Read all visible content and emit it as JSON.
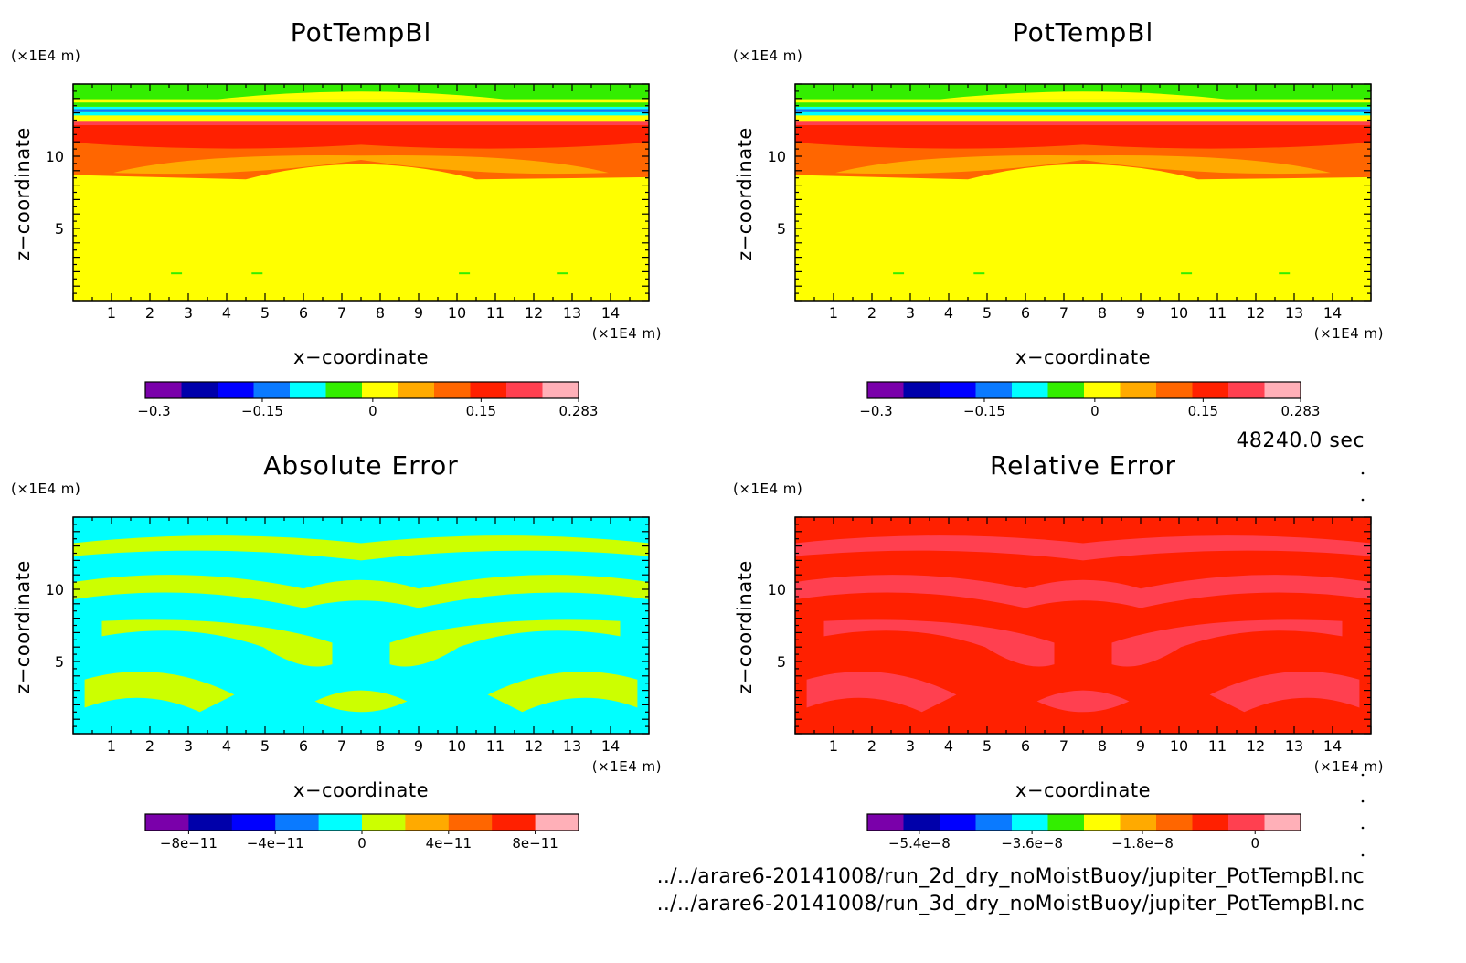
{
  "time_label": "48240.0 sec",
  "files": [
    "../../arare6-20141008/run_2d_dry_noMoistBuoy/jupiter_PotTempBl.nc",
    "../../arare6-20141008/run_3d_dry_noMoistBuoy/jupiter_PotTempBl.nc"
  ],
  "chart_data": [
    {
      "type": "heatmap",
      "title": "PotTempBl",
      "xlabel": "x−coordinate",
      "ylabel": "z−coordinate",
      "x_unit": "(×1E4 m)",
      "y_unit": "(×1E4 m)",
      "xlim": [
        0,
        15
      ],
      "ylim": [
        0,
        15
      ],
      "xticks": [
        1,
        2,
        3,
        4,
        5,
        6,
        7,
        8,
        9,
        10,
        11,
        12,
        13,
        14
      ],
      "yticks": [
        5,
        10
      ],
      "colorbar": {
        "colors": [
          "#7a00aa",
          "#0000aa",
          "#0000ff",
          "#0a7aff",
          "#00ffff",
          "#33ee00",
          "#ffff00",
          "#ffaa00",
          "#ff6600",
          "#ff2000",
          "#ff4050",
          "#ffb0b8"
        ],
        "ticks": [
          "−0.3",
          "−0.15",
          "0",
          "0.15",
          "0.283"
        ],
        "tick_fracs": [
          0.02,
          0.27,
          0.525,
          0.775,
          1.0
        ]
      },
      "field_description": "layered: uniform yellow below ~8; orange/red band ~8-12.5; thin blue/cyan/green/yellow stripes above 12.5"
    },
    {
      "type": "heatmap",
      "title": "PotTempBl",
      "xlabel": "x−coordinate",
      "ylabel": "z−coordinate",
      "x_unit": "(×1E4 m)",
      "y_unit": "(×1E4 m)",
      "xlim": [
        0,
        15
      ],
      "ylim": [
        0,
        15
      ],
      "xticks": [
        1,
        2,
        3,
        4,
        5,
        6,
        7,
        8,
        9,
        10,
        11,
        12,
        13,
        14
      ],
      "yticks": [
        5,
        10
      ],
      "colorbar": {
        "colors": [
          "#7a00aa",
          "#0000aa",
          "#0000ff",
          "#0a7aff",
          "#00ffff",
          "#33ee00",
          "#ffff00",
          "#ffaa00",
          "#ff6600",
          "#ff2000",
          "#ff4050",
          "#ffb0b8"
        ],
        "ticks": [
          "−0.3",
          "−0.15",
          "0",
          "0.15",
          "0.283"
        ],
        "tick_fracs": [
          0.02,
          0.27,
          0.525,
          0.775,
          1.0
        ]
      }
    },
    {
      "type": "heatmap",
      "title": "Absolute Error",
      "xlabel": "x−coordinate",
      "ylabel": "z−coordinate",
      "x_unit": "(×1E4 m)",
      "y_unit": "(×1E4 m)",
      "xlim": [
        0,
        15
      ],
      "ylim": [
        0,
        15
      ],
      "xticks": [
        1,
        2,
        3,
        4,
        5,
        6,
        7,
        8,
        9,
        10,
        11,
        12,
        13,
        14
      ],
      "yticks": [
        5,
        10
      ],
      "colorbar": {
        "colors": [
          "#7a00aa",
          "#0000aa",
          "#0000ff",
          "#0a7aff",
          "#00ffff",
          "#ccff00",
          "#ffaa00",
          "#ff6600",
          "#ff2000",
          "#ffb0b8"
        ],
        "ticks": [
          "−8e−11",
          "−4e−11",
          "0",
          "4e−11",
          "8e−11"
        ],
        "tick_fracs": [
          0.1,
          0.3,
          0.5,
          0.7,
          0.9
        ]
      },
      "field_colors": [
        "#00ffff",
        "#ccff00"
      ]
    },
    {
      "type": "heatmap",
      "title": "Relative Error",
      "xlabel": "x−coordinate",
      "ylabel": "z−coordinate",
      "x_unit": "(×1E4 m)",
      "y_unit": "(×1E4 m)",
      "xlim": [
        0,
        15
      ],
      "ylim": [
        0,
        15
      ],
      "xticks": [
        1,
        2,
        3,
        4,
        5,
        6,
        7,
        8,
        9,
        10,
        11,
        12,
        13,
        14
      ],
      "yticks": [
        5,
        10
      ],
      "colorbar": {
        "colors": [
          "#7a00aa",
          "#0000aa",
          "#0000ff",
          "#0a7aff",
          "#00ffff",
          "#33ee00",
          "#ffff00",
          "#ffaa00",
          "#ff6600",
          "#ff2000",
          "#ff4050",
          "#ffb0b8"
        ],
        "ticks": [
          "−5.4e−8",
          "−3.6e−8",
          "−1.8e−8",
          "0"
        ],
        "tick_fracs": [
          0.12,
          0.38,
          0.635,
          0.895
        ]
      },
      "field_colors": [
        "#ff2000",
        "#ff4050"
      ]
    }
  ]
}
